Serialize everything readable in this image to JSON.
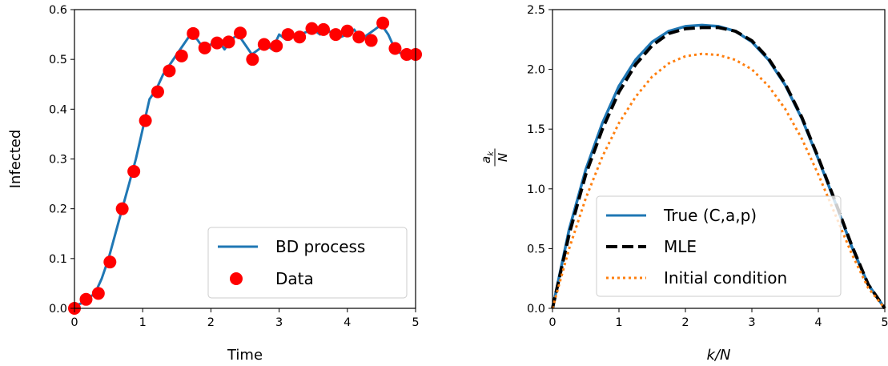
{
  "chart_data": [
    {
      "type": "line",
      "xlabel": "Time",
      "ylabel": "Infected",
      "xlim": [
        0,
        5
      ],
      "ylim": [
        0,
        0.6
      ],
      "xticks": [
        "0",
        "1",
        "2",
        "3",
        "4",
        "5"
      ],
      "yticks": [
        "0.0",
        "0.1",
        "0.2",
        "0.3",
        "0.4",
        "0.5",
        "0.6"
      ],
      "grid": false,
      "legend": "lower-right",
      "series": [
        {
          "name": "BD process",
          "kind": "line",
          "color": "#1f77b4",
          "x": [
            0,
            0.1,
            0.2,
            0.3,
            0.4,
            0.5,
            0.6,
            0.7,
            0.8,
            0.9,
            1.0,
            1.1,
            1.2,
            1.3,
            1.4,
            1.5,
            1.6,
            1.7,
            1.8,
            1.9,
            2.0,
            2.1,
            2.2,
            2.3,
            2.4,
            2.5,
            2.6,
            2.7,
            2.8,
            2.9,
            3.0,
            3.1,
            3.2,
            3.3,
            3.4,
            3.5,
            3.6,
            3.7,
            3.8,
            3.9,
            4.0,
            4.1,
            4.2,
            4.3,
            4.4,
            4.5,
            4.6,
            4.7,
            4.8,
            4.9,
            5.0
          ],
          "values": [
            0.005,
            0.01,
            0.02,
            0.03,
            0.06,
            0.1,
            0.15,
            0.2,
            0.25,
            0.3,
            0.36,
            0.42,
            0.44,
            0.47,
            0.49,
            0.51,
            0.53,
            0.55,
            0.54,
            0.52,
            0.53,
            0.54,
            0.52,
            0.54,
            0.55,
            0.53,
            0.51,
            0.52,
            0.53,
            0.52,
            0.55,
            0.54,
            0.545,
            0.55,
            0.555,
            0.56,
            0.55,
            0.56,
            0.55,
            0.545,
            0.55,
            0.56,
            0.54,
            0.55,
            0.56,
            0.57,
            0.55,
            0.52,
            0.51,
            0.5,
            0.51
          ]
        },
        {
          "name": "Data",
          "kind": "scatter",
          "color": "#ff0000",
          "x": [
            0.0,
            0.17,
            0.35,
            0.52,
            0.7,
            0.87,
            1.04,
            1.22,
            1.39,
            1.57,
            1.74,
            1.91,
            2.09,
            2.26,
            2.43,
            2.61,
            2.78,
            2.96,
            3.13,
            3.3,
            3.48,
            3.65,
            3.83,
            4.0,
            4.17,
            4.35,
            4.52,
            4.7,
            4.87,
            5.0
          ],
          "values": [
            0.0,
            0.018,
            0.03,
            0.093,
            0.2,
            0.275,
            0.377,
            0.435,
            0.477,
            0.507,
            0.552,
            0.523,
            0.533,
            0.535,
            0.553,
            0.5,
            0.53,
            0.527,
            0.55,
            0.545,
            0.562,
            0.56,
            0.55,
            0.557,
            0.545,
            0.538,
            0.573,
            0.522,
            0.51,
            0.51
          ]
        }
      ]
    },
    {
      "type": "line",
      "xlabel": "k/N",
      "ylabel": "a_k / N",
      "xlim": [
        0,
        5
      ],
      "ylim": [
        0,
        2.5
      ],
      "xticks": [
        "0",
        "1",
        "2",
        "3",
        "4",
        "5"
      ],
      "yticks": [
        "0.0",
        "0.5",
        "1.0",
        "1.5",
        "2.0",
        "2.5"
      ],
      "grid": false,
      "legend": "lower-center",
      "series": [
        {
          "name": "True (C,a,p)",
          "style": "solid",
          "color": "#1f77b4",
          "x": [
            0,
            0.25,
            0.5,
            0.75,
            1.0,
            1.25,
            1.5,
            1.75,
            2.0,
            2.25,
            2.5,
            2.75,
            3.0,
            3.25,
            3.5,
            3.75,
            4.0,
            4.25,
            4.5,
            4.75,
            5.0
          ],
          "values": [
            0,
            0.66,
            1.16,
            1.55,
            1.86,
            2.08,
            2.23,
            2.32,
            2.36,
            2.37,
            2.36,
            2.32,
            2.23,
            2.08,
            1.87,
            1.59,
            1.25,
            0.89,
            0.52,
            0.2,
            0
          ]
        },
        {
          "name": "MLE",
          "style": "dashed",
          "color": "#000000",
          "x": [
            0,
            0.25,
            0.5,
            0.75,
            1.0,
            1.25,
            1.5,
            1.75,
            2.0,
            2.25,
            2.5,
            2.75,
            3.0,
            3.25,
            3.5,
            3.75,
            4.0,
            4.25,
            4.5,
            4.75,
            5.0
          ],
          "values": [
            0,
            0.62,
            1.12,
            1.5,
            1.81,
            2.04,
            2.2,
            2.3,
            2.34,
            2.35,
            2.35,
            2.32,
            2.24,
            2.09,
            1.88,
            1.6,
            1.26,
            0.9,
            0.53,
            0.2,
            0
          ]
        },
        {
          "name": "Initial condition",
          "style": "dotted",
          "color": "#ff7f0e",
          "x": [
            0,
            0.25,
            0.5,
            0.75,
            1.0,
            1.25,
            1.5,
            1.75,
            2.0,
            2.25,
            2.5,
            2.75,
            3.0,
            3.25,
            3.5,
            3.75,
            4.0,
            4.25,
            4.5,
            4.75,
            5.0
          ],
          "values": [
            0,
            0.5,
            0.92,
            1.27,
            1.55,
            1.77,
            1.94,
            2.05,
            2.11,
            2.13,
            2.12,
            2.08,
            2.0,
            1.86,
            1.67,
            1.42,
            1.12,
            0.79,
            0.46,
            0.17,
            0
          ]
        }
      ]
    }
  ]
}
